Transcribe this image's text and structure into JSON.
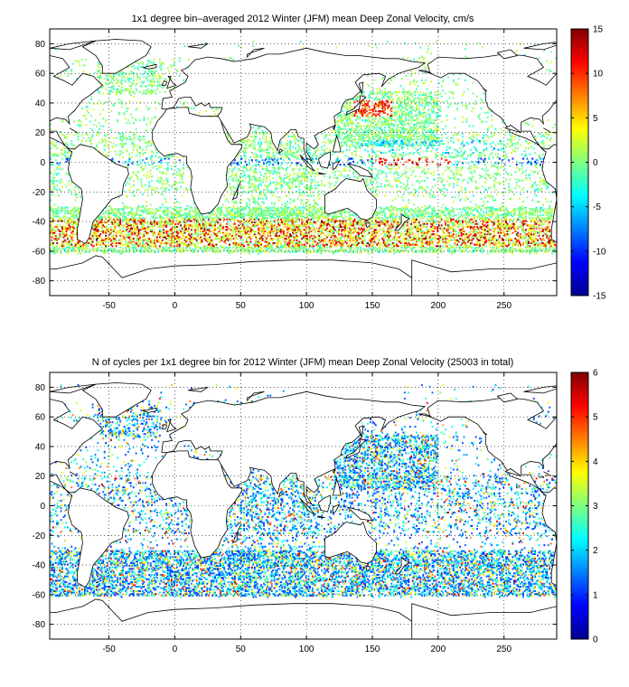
{
  "figure": {
    "panels": [
      {
        "title": "1x1 degree bin–averaged 2012 Winter (JFM) mean Deep Zonal Velocity, cm/s",
        "xticks": [
          "-50",
          "0",
          "50",
          "100",
          "150",
          "200",
          "250"
        ],
        "yticks": [
          "80",
          "60",
          "40",
          "20",
          "0",
          "-20",
          "-40",
          "-60",
          "-80"
        ],
        "cbar_ticks": [
          "15",
          "10",
          "5",
          "0",
          "-5",
          "-10",
          "-15"
        ]
      },
      {
        "title": "N of cycles per 1x1 degree bin for 2012 Winter (JFM) mean Deep Zonal Velocity (25003 in total)",
        "xticks": [
          "-50",
          "0",
          "50",
          "100",
          "150",
          "200",
          "250"
        ],
        "yticks": [
          "80",
          "60",
          "40",
          "20",
          "0",
          "-20",
          "-40",
          "-60",
          "-80"
        ],
        "cbar_ticks": [
          "6",
          "5",
          "4",
          "3",
          "2",
          "1",
          "0"
        ]
      }
    ]
  },
  "chart_data": [
    {
      "type": "heatmap",
      "title": "1x1 degree bin–averaged 2012 Winter (JFM) mean Deep Zonal Velocity, cm/s",
      "xlim": [
        -95,
        290
      ],
      "ylim": [
        -90,
        90
      ],
      "xticks": [
        -50,
        0,
        50,
        100,
        150,
        200,
        250
      ],
      "yticks": [
        80,
        60,
        40,
        20,
        0,
        -20,
        -40,
        -60,
        -80
      ],
      "grid": true,
      "colorbar": {
        "min": -15,
        "max": 15,
        "ticks": [
          15,
          10,
          5,
          0,
          -5,
          -10,
          -15
        ],
        "colormap": "jet",
        "placement": "right"
      }
    },
    {
      "type": "heatmap",
      "title": "N of cycles per 1x1 degree bin for 2012 Winter (JFM) mean Deep Zonal Velocity (25003 in total)",
      "xlim": [
        -95,
        290
      ],
      "ylim": [
        -90,
        90
      ],
      "xticks": [
        -50,
        0,
        50,
        100,
        150,
        200,
        250
      ],
      "yticks": [
        80,
        60,
        40,
        20,
        0,
        -20,
        -40,
        -60,
        -80
      ],
      "grid": true,
      "colorbar": {
        "min": 0,
        "max": 6,
        "ticks": [
          6,
          5,
          4,
          3,
          2,
          1,
          0
        ],
        "colormap": "jet",
        "placement": "right"
      }
    }
  ]
}
